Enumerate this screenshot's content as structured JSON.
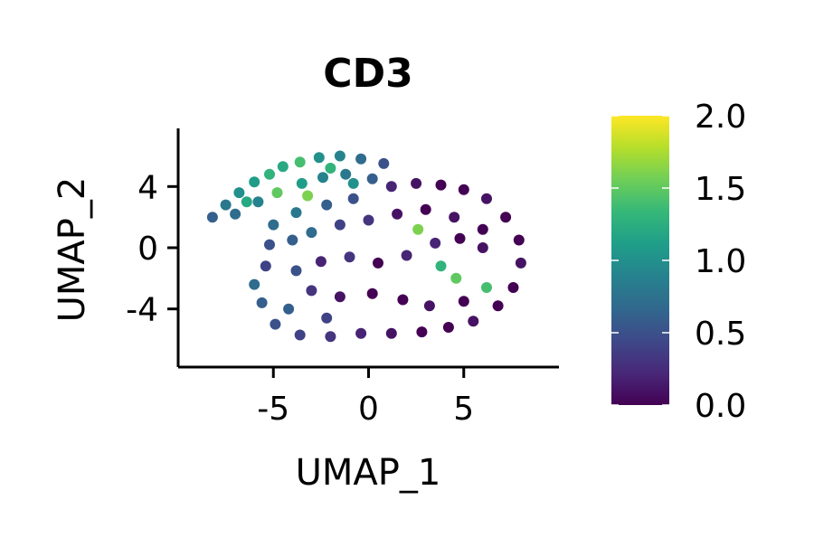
{
  "chart_data": {
    "type": "scatter",
    "title": "CD3",
    "xlabel": "UMAP_1",
    "ylabel": "UMAP_2",
    "xlim": [
      -10,
      10
    ],
    "ylim": [
      -7.8,
      7.8
    ],
    "x_ticks": [
      {
        "value": -5,
        "label": "-5"
      },
      {
        "value": 0,
        "label": "0"
      },
      {
        "value": 5,
        "label": "5"
      }
    ],
    "y_ticks": [
      {
        "value": -4,
        "label": "-4"
      },
      {
        "value": 0,
        "label": "0"
      },
      {
        "value": 4,
        "label": "4"
      }
    ],
    "grid": false,
    "colorbar": {
      "colormap": "viridis",
      "range": [
        0.0,
        2.0
      ],
      "ticks": [
        {
          "value": 0.0,
          "label": "0.0"
        },
        {
          "value": 0.5,
          "label": "0.5"
        },
        {
          "value": 1.0,
          "label": "1.0"
        },
        {
          "value": 1.5,
          "label": "1.5"
        },
        {
          "value": 2.0,
          "label": "2.0"
        }
      ]
    },
    "colormap_stops": [
      "#440154",
      "#482878",
      "#3e4989",
      "#31688e",
      "#26828e",
      "#1f9e89",
      "#35b779",
      "#6ece58",
      "#b5de2b",
      "#fde725"
    ],
    "points": [
      {
        "x": -8.2,
        "y": 2.0,
        "value": 0.6
      },
      {
        "x": -7.5,
        "y": 2.8,
        "value": 0.8
      },
      {
        "x": -6.8,
        "y": 3.6,
        "value": 1.0
      },
      {
        "x": -6.0,
        "y": 4.3,
        "value": 1.1
      },
      {
        "x": -5.2,
        "y": 4.8,
        "value": 1.3
      },
      {
        "x": -4.5,
        "y": 5.3,
        "value": 1.2
      },
      {
        "x": -3.6,
        "y": 5.6,
        "value": 1.4
      },
      {
        "x": -2.6,
        "y": 5.9,
        "value": 1.0
      },
      {
        "x": -1.5,
        "y": 6.0,
        "value": 0.9
      },
      {
        "x": -0.4,
        "y": 5.8,
        "value": 0.7
      },
      {
        "x": 0.8,
        "y": 5.5,
        "value": 0.5
      },
      {
        "x": -7.0,
        "y": 2.2,
        "value": 0.7
      },
      {
        "x": -5.8,
        "y": 3.0,
        "value": 0.9
      },
      {
        "x": -4.8,
        "y": 3.6,
        "value": 1.5
      },
      {
        "x": -3.5,
        "y": 4.2,
        "value": 1.1
      },
      {
        "x": -2.4,
        "y": 4.6,
        "value": 0.9
      },
      {
        "x": -1.2,
        "y": 4.8,
        "value": 0.8
      },
      {
        "x": 0.2,
        "y": 4.5,
        "value": 0.6
      },
      {
        "x": -5.0,
        "y": 1.5,
        "value": 0.7
      },
      {
        "x": -3.8,
        "y": 2.3,
        "value": 0.8
      },
      {
        "x": -2.2,
        "y": 2.8,
        "value": 0.6
      },
      {
        "x": -0.8,
        "y": 3.2,
        "value": 0.5
      },
      {
        "x": 1.2,
        "y": 4.0,
        "value": 0.2
      },
      {
        "x": 2.5,
        "y": 4.2,
        "value": 0.1
      },
      {
        "x": 3.8,
        "y": 4.1,
        "value": 0.0
      },
      {
        "x": 5.0,
        "y": 3.8,
        "value": 0.0
      },
      {
        "x": 6.2,
        "y": 3.2,
        "value": 0.1
      },
      {
        "x": 7.2,
        "y": 2.0,
        "value": 0.0
      },
      {
        "x": 7.9,
        "y": 0.5,
        "value": 0.0
      },
      {
        "x": 8.0,
        "y": -1.0,
        "value": 0.1
      },
      {
        "x": 7.6,
        "y": -2.6,
        "value": 0.0
      },
      {
        "x": 6.8,
        "y": -3.8,
        "value": 0.0
      },
      {
        "x": 5.5,
        "y": -4.8,
        "value": 0.1
      },
      {
        "x": 4.2,
        "y": -5.2,
        "value": 0.0
      },
      {
        "x": 2.8,
        "y": -5.5,
        "value": 0.0
      },
      {
        "x": 1.2,
        "y": -5.6,
        "value": 0.1
      },
      {
        "x": -0.4,
        "y": -5.6,
        "value": 0.2
      },
      {
        "x": -2.0,
        "y": -5.8,
        "value": 0.3
      },
      {
        "x": -3.6,
        "y": -5.7,
        "value": 0.4
      },
      {
        "x": -4.9,
        "y": -5.0,
        "value": 0.5
      },
      {
        "x": -5.6,
        "y": -3.6,
        "value": 0.6
      },
      {
        "x": -6.0,
        "y": -2.4,
        "value": 0.7
      },
      {
        "x": -5.4,
        "y": -1.2,
        "value": 0.4
      },
      {
        "x": -5.2,
        "y": 0.2,
        "value": 0.5
      },
      {
        "x": -4.0,
        "y": 0.5,
        "value": 0.6
      },
      {
        "x": -3.0,
        "y": 1.0,
        "value": 0.7
      },
      {
        "x": -1.5,
        "y": 1.5,
        "value": 0.4
      },
      {
        "x": 0.0,
        "y": 1.8,
        "value": 0.3
      },
      {
        "x": 1.5,
        "y": 2.2,
        "value": 0.1
      },
      {
        "x": 3.0,
        "y": 2.5,
        "value": 0.0
      },
      {
        "x": 4.5,
        "y": 2.0,
        "value": 0.1
      },
      {
        "x": 6.0,
        "y": 1.2,
        "value": 0.0
      },
      {
        "x": 2.6,
        "y": 1.2,
        "value": 1.6
      },
      {
        "x": 3.8,
        "y": -1.2,
        "value": 1.3
      },
      {
        "x": 4.6,
        "y": -2.0,
        "value": 1.5
      },
      {
        "x": 6.2,
        "y": -2.6,
        "value": 1.4
      },
      {
        "x": 2.0,
        "y": -0.5,
        "value": 0.2
      },
      {
        "x": 0.5,
        "y": -1.0,
        "value": 0.0
      },
      {
        "x": -1.0,
        "y": -0.6,
        "value": 0.3
      },
      {
        "x": -2.5,
        "y": -0.9,
        "value": 0.2
      },
      {
        "x": -3.8,
        "y": -1.5,
        "value": 0.5
      },
      {
        "x": -3.0,
        "y": -2.8,
        "value": 0.3
      },
      {
        "x": -1.5,
        "y": -3.2,
        "value": 0.1
      },
      {
        "x": 0.2,
        "y": -3.0,
        "value": 0.0
      },
      {
        "x": 1.8,
        "y": -3.4,
        "value": 0.0
      },
      {
        "x": 3.2,
        "y": -3.8,
        "value": 0.1
      },
      {
        "x": 5.0,
        "y": -3.5,
        "value": 0.0
      },
      {
        "x": 6.0,
        "y": 0.0,
        "value": 0.1
      },
      {
        "x": 4.8,
        "y": 0.6,
        "value": 0.0
      },
      {
        "x": 3.5,
        "y": 0.3,
        "value": 0.2
      },
      {
        "x": -2.2,
        "y": -4.6,
        "value": 0.4
      },
      {
        "x": -4.2,
        "y": -4.0,
        "value": 0.6
      },
      {
        "x": -3.2,
        "y": 3.4,
        "value": 1.6
      },
      {
        "x": -2.0,
        "y": 5.2,
        "value": 1.3
      },
      {
        "x": -6.4,
        "y": 3.0,
        "value": 1.2
      },
      {
        "x": -0.8,
        "y": 4.2,
        "value": 1.0
      }
    ]
  }
}
